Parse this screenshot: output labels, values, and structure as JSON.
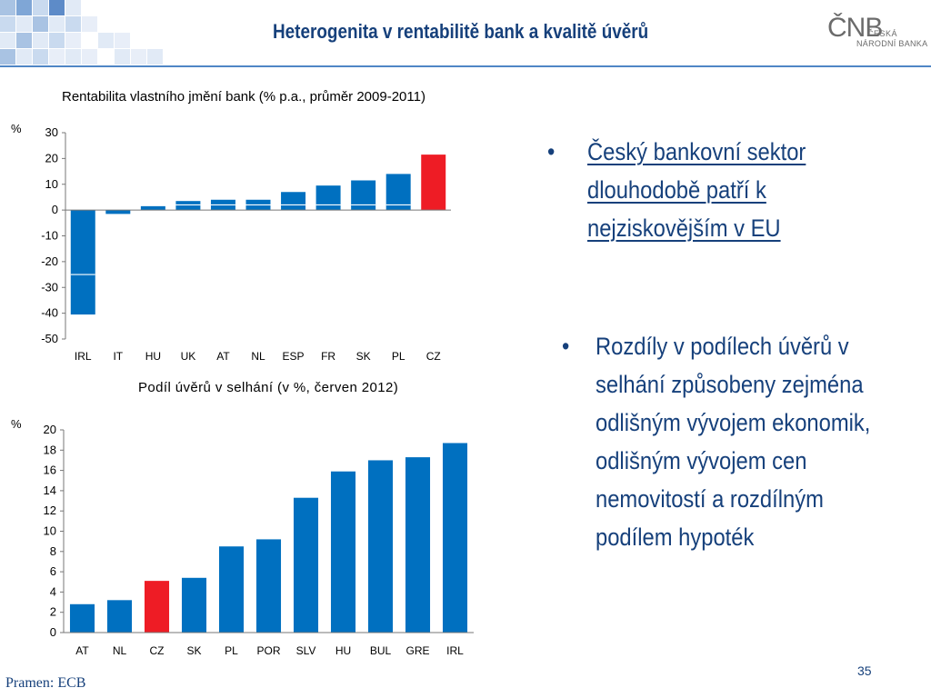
{
  "slide": {
    "title": "Heterogenita v rentabilitě bank a kvalitě úvěrů",
    "logo": {
      "mark": "ČNB",
      "line1": "ČESKÁ",
      "line2": "NÁRODNÍ BANKA"
    },
    "source": "Pramen: ECB",
    "page_number": "35",
    "colors": {
      "title": "#16407b",
      "bar": "#0070c0",
      "highlight": "#ee1c25",
      "rule": "#4f86c6"
    }
  },
  "bullets": [
    {
      "marker": "•",
      "text": "Český bankovní sektor dlouhodobě patří k nejziskovějším v EU"
    },
    {
      "marker": "•",
      "text": "Rozdíly v podílech úvěrů v selhání způsobeny zejména odlišným vývojem ekonomik, odlišným vývojem cen nemovitostí a rozdílným podílem hypoték"
    }
  ],
  "chart_data": [
    {
      "type": "bar",
      "title": "Rentabilita vlastního jmění bank (% p.a., průměr 2009-2011)",
      "unit_label": "%",
      "categories": [
        "IRL",
        "IT",
        "HU",
        "UK",
        "AT",
        "NL",
        "ESP",
        "FR",
        "SK",
        "PL",
        "CZ"
      ],
      "values": [
        -40.5,
        -1.5,
        1.5,
        3.5,
        4,
        4,
        7,
        9.5,
        11.5,
        14,
        21.5
      ],
      "highlight": "CZ",
      "ylim": [
        -50,
        30
      ],
      "yticks": [
        30,
        20,
        10,
        0,
        -10,
        -20,
        -30,
        -40,
        -50
      ],
      "grid": false
    },
    {
      "type": "bar",
      "title": "Podíl úvěrů v selhání (v %, červen 2012)",
      "unit_label": "%",
      "categories": [
        "AT",
        "NL",
        "CZ",
        "SK",
        "PL",
        "POR",
        "SLV",
        "HU",
        "BUL",
        "GRE",
        "IRL"
      ],
      "values": [
        2.8,
        3.2,
        5.1,
        5.4,
        8.5,
        9.2,
        13.3,
        15.9,
        17.0,
        17.3,
        18.7
      ],
      "highlight": "CZ",
      "ylim": [
        0,
        20
      ],
      "yticks": [
        20,
        18,
        16,
        14,
        12,
        10,
        8,
        6,
        4,
        2,
        0
      ],
      "grid": false
    }
  ]
}
